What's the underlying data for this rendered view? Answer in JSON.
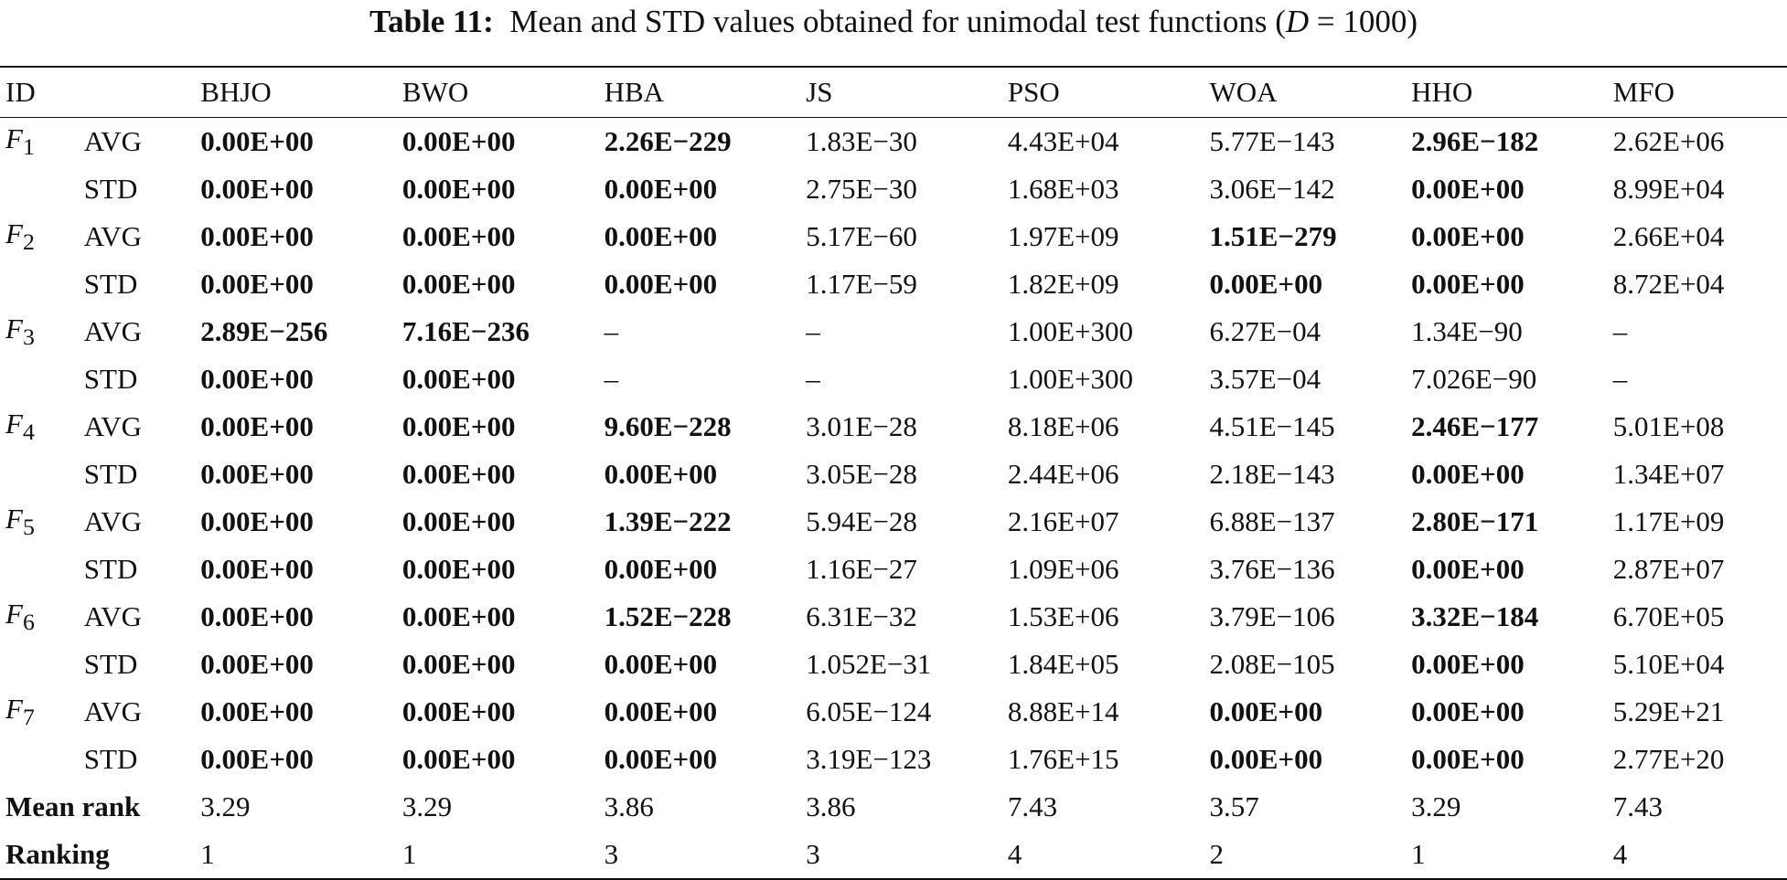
{
  "caption": {
    "label": "Table 11:",
    "text_before": "Mean and STD values obtained for unimodal test functions (",
    "d_var": "D",
    "text_after": " = 1000)"
  },
  "table": {
    "headers": [
      "ID",
      "",
      "BHJO",
      "BWO",
      "HBA",
      "JS",
      "PSO",
      "WOA",
      "HHO",
      "MFO"
    ],
    "functions": [
      {
        "name": "F",
        "sub": "1",
        "avg": [
          "0.00E+00",
          "0.00E+00",
          "2.26E−229",
          "1.83E−30",
          "4.43E+04",
          "5.77E−143",
          "2.96E−182",
          "2.62E+06"
        ],
        "avg_bold": [
          true,
          true,
          true,
          false,
          false,
          false,
          true,
          false
        ],
        "std": [
          "0.00E+00",
          "0.00E+00",
          "0.00E+00",
          "2.75E−30",
          "1.68E+03",
          "3.06E−142",
          "0.00E+00",
          "8.99E+04"
        ],
        "std_bold": [
          true,
          true,
          true,
          false,
          false,
          false,
          true,
          false
        ]
      },
      {
        "name": "F",
        "sub": "2",
        "avg": [
          "0.00E+00",
          "0.00E+00",
          "0.00E+00",
          "5.17E−60",
          "1.97E+09",
          "1.51E−279",
          "0.00E+00",
          "2.66E+04"
        ],
        "avg_bold": [
          true,
          true,
          true,
          false,
          false,
          true,
          true,
          false
        ],
        "std": [
          "0.00E+00",
          "0.00E+00",
          "0.00E+00",
          "1.17E−59",
          "1.82E+09",
          "0.00E+00",
          "0.00E+00",
          "8.72E+04"
        ],
        "std_bold": [
          true,
          true,
          true,
          false,
          false,
          true,
          true,
          false
        ]
      },
      {
        "name": "F",
        "sub": "3",
        "avg": [
          "2.89E−256",
          "7.16E−236",
          "–",
          "–",
          "1.00E+300",
          "6.27E−04",
          "1.34E−90",
          "–"
        ],
        "avg_bold": [
          true,
          true,
          false,
          false,
          false,
          false,
          false,
          false
        ],
        "std": [
          "0.00E+00",
          "0.00E+00",
          "–",
          "–",
          "1.00E+300",
          "3.57E−04",
          "7.026E−90",
          "–"
        ],
        "std_bold": [
          true,
          true,
          false,
          false,
          false,
          false,
          false,
          false
        ]
      },
      {
        "name": "F",
        "sub": "4",
        "avg": [
          "0.00E+00",
          "0.00E+00",
          "9.60E−228",
          "3.01E−28",
          "8.18E+06",
          "4.51E−145",
          "2.46E−177",
          "5.01E+08"
        ],
        "avg_bold": [
          true,
          true,
          true,
          false,
          false,
          false,
          true,
          false
        ],
        "std": [
          "0.00E+00",
          "0.00E+00",
          "0.00E+00",
          "3.05E−28",
          "2.44E+06",
          "2.18E−143",
          "0.00E+00",
          "1.34E+07"
        ],
        "std_bold": [
          true,
          true,
          true,
          false,
          false,
          false,
          true,
          false
        ]
      },
      {
        "name": "F",
        "sub": "5",
        "avg": [
          "0.00E+00",
          "0.00E+00",
          "1.39E−222",
          "5.94E−28",
          "2.16E+07",
          "6.88E−137",
          "2.80E−171",
          "1.17E+09"
        ],
        "avg_bold": [
          true,
          true,
          true,
          false,
          false,
          false,
          true,
          false
        ],
        "std": [
          "0.00E+00",
          "0.00E+00",
          "0.00E+00",
          "1.16E−27",
          "1.09E+06",
          "3.76E−136",
          "0.00E+00",
          "2.87E+07"
        ],
        "std_bold": [
          true,
          true,
          true,
          false,
          false,
          false,
          true,
          false
        ]
      },
      {
        "name": "F",
        "sub": "6",
        "avg": [
          "0.00E+00",
          "0.00E+00",
          "1.52E−228",
          "6.31E−32",
          "1.53E+06",
          "3.79E−106",
          "3.32E−184",
          "6.70E+05"
        ],
        "avg_bold": [
          true,
          true,
          true,
          false,
          false,
          false,
          true,
          false
        ],
        "std": [
          "0.00E+00",
          "0.00E+00",
          "0.00E+00",
          "1.052E−31",
          "1.84E+05",
          "2.08E−105",
          "0.00E+00",
          "5.10E+04"
        ],
        "std_bold": [
          true,
          true,
          true,
          false,
          false,
          false,
          true,
          false
        ]
      },
      {
        "name": "F",
        "sub": "7",
        "avg": [
          "0.00E+00",
          "0.00E+00",
          "0.00E+00",
          "6.05E−124",
          "8.88E+14",
          "0.00E+00",
          "0.00E+00",
          "5.29E+21"
        ],
        "avg_bold": [
          true,
          true,
          true,
          false,
          false,
          true,
          true,
          false
        ],
        "std": [
          "0.00E+00",
          "0.00E+00",
          "0.00E+00",
          "3.19E−123",
          "1.76E+15",
          "0.00E+00",
          "0.00E+00",
          "2.77E+20"
        ],
        "std_bold": [
          true,
          true,
          true,
          false,
          false,
          true,
          true,
          false
        ]
      }
    ],
    "avg_label": "AVG",
    "std_label": "STD",
    "mean_rank": {
      "label": "Mean rank",
      "values": [
        "3.29",
        "3.29",
        "3.86",
        "3.86",
        "7.43",
        "3.57",
        "3.29",
        "7.43"
      ]
    },
    "ranking": {
      "label": "Ranking",
      "values": [
        "1",
        "1",
        "3",
        "3",
        "4",
        "2",
        "1",
        "4"
      ]
    }
  }
}
